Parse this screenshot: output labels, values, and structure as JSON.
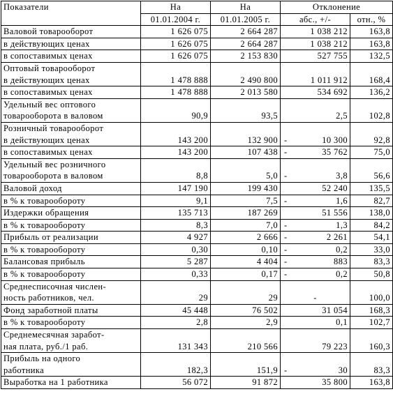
{
  "header": {
    "indicator": "Показатели",
    "on_start": "На",
    "on_end": "На",
    "deviation": "Отклонение",
    "date_start": "01.01.2004 г.",
    "date_end": "01.01.2005 г.",
    "abs": "абс., +/-",
    "rel": "отн., %"
  },
  "rows": [
    {
      "label": [
        "Валовой товарооборот"
      ],
      "v2004": "1 626 075",
      "v2005": "2 664 287",
      "abs": "1 038 212",
      "rel": "163,8"
    },
    {
      "label": [
        "в действующих ценах"
      ],
      "v2004": "1 626 075",
      "v2005": "2 664 287",
      "abs": "1 038 212",
      "rel": "163,8"
    },
    {
      "label": [
        "в сопоставимых ценах"
      ],
      "v2004": "1 626 075",
      "v2005": "2 153 830",
      "abs": "527 755",
      "rel": "132,5"
    },
    {
      "label": [
        "Оптовый товарооборот",
        "в действующих ценах"
      ],
      "v2004": "1 478 888",
      "v2005": "2 490 800",
      "abs": "1 011 912",
      "rel": "168,4"
    },
    {
      "label": [
        "в сопоставимых ценах"
      ],
      "v2004": "1 478 888",
      "v2005": "2 013 580",
      "abs": "534 692",
      "rel": "136,2"
    },
    {
      "label": [
        "Удельный вес оптового",
        "товарооборота в валовом"
      ],
      "v2004": "90,9",
      "v2005": "93,5",
      "abs": "2,5",
      "rel": "102,8"
    },
    {
      "label": [
        "Розничный товарооборот",
        "в действующих ценах"
      ],
      "v2004": "143 200",
      "v2005": "132 900",
      "abs_sign": "-",
      "abs": "10 300",
      "rel": "92,8"
    },
    {
      "label": [
        "в сопоставимых ценах"
      ],
      "v2004": "143 200",
      "v2005": "107 438",
      "abs_sign": "-",
      "abs": "35 762",
      "rel": "75,0"
    },
    {
      "label": [
        "Удельный вес розничного",
        "товарооборота в валовом"
      ],
      "v2004": "8,8",
      "v2005": "5,0",
      "abs_sign": "-",
      "abs": "3,8",
      "rel": "56,6"
    },
    {
      "label": [
        "Валовой доход"
      ],
      "v2004": "147 190",
      "v2005": "199 430",
      "abs": "52 240",
      "rel": "135,5"
    },
    {
      "label": [
        "в % к товарообороту"
      ],
      "v2004": "9,1",
      "v2005": "7,5",
      "abs_sign": "-",
      "abs": "1,6",
      "rel": "82,7"
    },
    {
      "label": [
        "Издержки обращения"
      ],
      "v2004": "135 713",
      "v2005": "187 269",
      "abs": "51 556",
      "rel": "138,0"
    },
    {
      "label": [
        "в % к товарообороту"
      ],
      "v2004": "8,3",
      "v2005": "7,0",
      "abs_sign": "-",
      "abs": "1,3",
      "rel": "84,2"
    },
    {
      "label": [
        "Прибыль от реализации"
      ],
      "v2004": "4 927",
      "v2005": "2 666",
      "abs_sign": "-",
      "abs": "2 261",
      "rel": "54,1"
    },
    {
      "label": [
        "в % к товарообороту"
      ],
      "v2004": "0,30",
      "v2005": "0,10",
      "abs_sign": "-",
      "abs": "0,2",
      "rel": "33,0"
    },
    {
      "label": [
        "Балансовая прибыль"
      ],
      "v2004": "5 287",
      "v2005": "4 404",
      "abs_sign": "-",
      "abs": "883",
      "rel": "83,3"
    },
    {
      "label": [
        "в % к товарообороту"
      ],
      "v2004": "0,33",
      "v2005": "0,17",
      "abs_sign": "-",
      "abs": "0,2",
      "rel": "50,8"
    },
    {
      "label": [
        "Среднесписочная числен-",
        "ность работников, чел."
      ],
      "v2004": "29",
      "v2005": "29",
      "abs_center": "-",
      "rel": "100,0"
    },
    {
      "label": [
        "Фонд заработной платы"
      ],
      "v2004": "45 448",
      "v2005": "76 502",
      "abs": "31 054",
      "rel": "168,3"
    },
    {
      "label": [
        "в % к товарообороту"
      ],
      "v2004": "2,8",
      "v2005": "2,9",
      "abs": "0,1",
      "rel": "102,7"
    },
    {
      "label": [
        "Среднемесячная заработ-",
        "ная плата, руб./1 раб."
      ],
      "v2004": "131 343",
      "v2005": "210 566",
      "abs": "79 223",
      "rel": "160,3"
    },
    {
      "label": [
        "Прибыль на одного",
        "работника"
      ],
      "v2004": "182,3",
      "v2005": "151,9",
      "abs_sign": "-",
      "abs": "30",
      "rel": "83,3"
    },
    {
      "label": [
        "Выработка на 1 работника"
      ],
      "v2004": "56 072",
      "v2005": "91 872",
      "abs": "35 800",
      "rel": "163,8"
    }
  ]
}
